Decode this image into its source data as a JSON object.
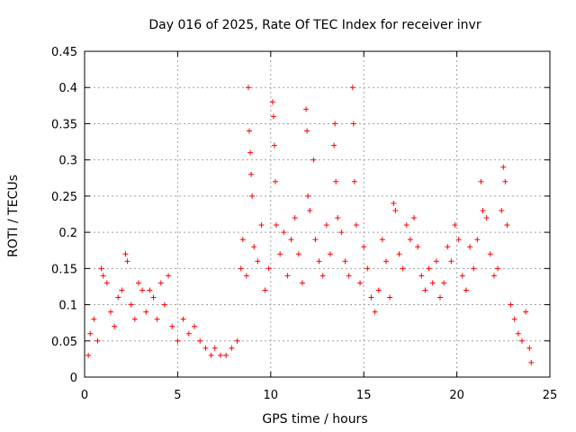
{
  "chart_data": {
    "type": "scatter",
    "title": "Day 016 of 2025, Rate Of TEC Index for receiver invr",
    "xlabel": "GPS time / hours",
    "ylabel": "ROTI / TECUs",
    "xlim": [
      0,
      25
    ],
    "ylim": [
      0,
      0.45
    ],
    "xticks": [
      0,
      5,
      10,
      15,
      20,
      25
    ],
    "xtick_labels": [
      "0",
      "5",
      "10",
      "15",
      "20",
      "25"
    ],
    "yticks": [
      0,
      0.05,
      0.1,
      0.15,
      0.2,
      0.25,
      0.3,
      0.35,
      0.4,
      0.45
    ],
    "ytick_labels": [
      "0",
      "0.05",
      "0.1",
      "0.15",
      "0.2",
      "0.25",
      "0.3",
      "0.35",
      "0.4",
      "0.45"
    ],
    "grid": true,
    "marker": "+",
    "color": "#ff0000",
    "series": [
      {
        "name": "ROTI",
        "points": [
          [
            0.2,
            0.03
          ],
          [
            0.3,
            0.06
          ],
          [
            0.5,
            0.08
          ],
          [
            0.7,
            0.05
          ],
          [
            0.9,
            0.15
          ],
          [
            1.0,
            0.14
          ],
          [
            1.2,
            0.13
          ],
          [
            1.4,
            0.09
          ],
          [
            1.6,
            0.07
          ],
          [
            1.8,
            0.11
          ],
          [
            2.0,
            0.12
          ],
          [
            2.2,
            0.17
          ],
          [
            2.3,
            0.16
          ],
          [
            2.5,
            0.1
          ],
          [
            2.7,
            0.08
          ],
          [
            2.9,
            0.13
          ],
          [
            3.1,
            0.12
          ],
          [
            3.3,
            0.09
          ],
          [
            3.5,
            0.12
          ],
          [
            3.7,
            0.11
          ],
          [
            3.9,
            0.08
          ],
          [
            4.1,
            0.13
          ],
          [
            4.3,
            0.1
          ],
          [
            4.5,
            0.14
          ],
          [
            4.7,
            0.07
          ],
          [
            5.0,
            0.05
          ],
          [
            5.3,
            0.08
          ],
          [
            5.6,
            0.06
          ],
          [
            5.9,
            0.07
          ],
          [
            6.2,
            0.05
          ],
          [
            6.5,
            0.04
          ],
          [
            6.8,
            0.03
          ],
          [
            7.0,
            0.04
          ],
          [
            7.3,
            0.03
          ],
          [
            7.6,
            0.03
          ],
          [
            7.9,
            0.04
          ],
          [
            8.2,
            0.05
          ],
          [
            8.4,
            0.15
          ],
          [
            8.5,
            0.19
          ],
          [
            8.7,
            0.14
          ],
          [
            8.8,
            0.4
          ],
          [
            8.85,
            0.34
          ],
          [
            8.9,
            0.31
          ],
          [
            8.95,
            0.28
          ],
          [
            9.0,
            0.25
          ],
          [
            9.1,
            0.18
          ],
          [
            9.3,
            0.16
          ],
          [
            9.5,
            0.21
          ],
          [
            9.7,
            0.12
          ],
          [
            9.9,
            0.15
          ],
          [
            10.1,
            0.38
          ],
          [
            10.15,
            0.36
          ],
          [
            10.2,
            0.32
          ],
          [
            10.25,
            0.27
          ],
          [
            10.3,
            0.21
          ],
          [
            10.5,
            0.17
          ],
          [
            10.7,
            0.2
          ],
          [
            10.9,
            0.14
          ],
          [
            11.1,
            0.19
          ],
          [
            11.3,
            0.22
          ],
          [
            11.5,
            0.17
          ],
          [
            11.7,
            0.13
          ],
          [
            11.9,
            0.37
          ],
          [
            11.95,
            0.34
          ],
          [
            12.0,
            0.25
          ],
          [
            12.1,
            0.23
          ],
          [
            12.3,
            0.3
          ],
          [
            12.4,
            0.19
          ],
          [
            12.6,
            0.16
          ],
          [
            12.8,
            0.14
          ],
          [
            13.0,
            0.21
          ],
          [
            13.2,
            0.17
          ],
          [
            13.4,
            0.32
          ],
          [
            13.45,
            0.35
          ],
          [
            13.5,
            0.27
          ],
          [
            13.6,
            0.22
          ],
          [
            13.8,
            0.2
          ],
          [
            14.0,
            0.16
          ],
          [
            14.2,
            0.14
          ],
          [
            14.4,
            0.4
          ],
          [
            14.45,
            0.35
          ],
          [
            14.5,
            0.27
          ],
          [
            14.6,
            0.21
          ],
          [
            14.8,
            0.13
          ],
          [
            15.0,
            0.18
          ],
          [
            15.2,
            0.15
          ],
          [
            15.4,
            0.11
          ],
          [
            15.6,
            0.09
          ],
          [
            15.8,
            0.12
          ],
          [
            16.0,
            0.19
          ],
          [
            16.2,
            0.16
          ],
          [
            16.4,
            0.11
          ],
          [
            16.6,
            0.24
          ],
          [
            16.7,
            0.23
          ],
          [
            16.9,
            0.17
          ],
          [
            17.1,
            0.15
          ],
          [
            17.3,
            0.21
          ],
          [
            17.5,
            0.19
          ],
          [
            17.7,
            0.22
          ],
          [
            17.9,
            0.18
          ],
          [
            18.1,
            0.14
          ],
          [
            18.3,
            0.12
          ],
          [
            18.5,
            0.15
          ],
          [
            18.7,
            0.13
          ],
          [
            18.9,
            0.16
          ],
          [
            19.1,
            0.11
          ],
          [
            19.3,
            0.13
          ],
          [
            19.5,
            0.18
          ],
          [
            19.7,
            0.16
          ],
          [
            19.9,
            0.21
          ],
          [
            20.1,
            0.19
          ],
          [
            20.3,
            0.14
          ],
          [
            20.5,
            0.12
          ],
          [
            20.7,
            0.18
          ],
          [
            20.9,
            0.15
          ],
          [
            21.1,
            0.19
          ],
          [
            21.3,
            0.27
          ],
          [
            21.4,
            0.23
          ],
          [
            21.6,
            0.22
          ],
          [
            21.8,
            0.17
          ],
          [
            22.0,
            0.14
          ],
          [
            22.2,
            0.15
          ],
          [
            22.4,
            0.23
          ],
          [
            22.5,
            0.29
          ],
          [
            22.6,
            0.27
          ],
          [
            22.7,
            0.21
          ],
          [
            22.9,
            0.1
          ],
          [
            23.1,
            0.08
          ],
          [
            23.3,
            0.06
          ],
          [
            23.5,
            0.05
          ],
          [
            23.7,
            0.09
          ],
          [
            23.9,
            0.04
          ],
          [
            24.0,
            0.02
          ]
        ]
      }
    ]
  }
}
